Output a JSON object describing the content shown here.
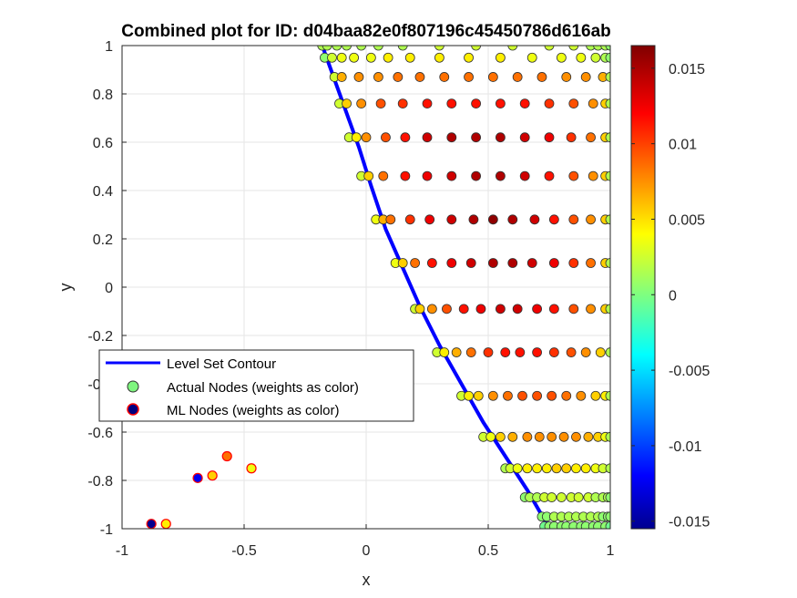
{
  "chart_data": {
    "type": "scatter",
    "title": "Combined plot for ID: d04baa82e0f807196c45450786d616ab",
    "xlabel": "x",
    "ylabel": "y",
    "xlim": [
      -1,
      1
    ],
    "ylim": [
      -1,
      1
    ],
    "grid": true,
    "x_ticks": [
      -1,
      -0.5,
      0,
      0.5,
      1
    ],
    "y_ticks": [
      -1,
      -0.8,
      -0.6,
      -0.4,
      -0.2,
      0,
      0.2,
      0.4,
      0.6,
      0.8,
      1
    ],
    "x_tick_labels": [
      "-1",
      "-0.5",
      "0",
      "0.5",
      "1"
    ],
    "y_tick_labels": [
      "-1",
      "-0.8",
      "-0.6",
      "-0.4",
      "-0.2",
      "0",
      "0.2",
      "0.4",
      "0.6",
      "0.8",
      "1"
    ],
    "colormap": "jet",
    "colorbar": {
      "range": [
        -0.0155,
        0.0165
      ],
      "ticks": [
        -0.015,
        -0.01,
        -0.005,
        0,
        0.005,
        0.01,
        0.015
      ],
      "tick_labels": [
        "-0.015",
        "-0.01",
        "-0.005",
        "0",
        "0.005",
        "0.01",
        "0.015"
      ]
    },
    "legend": {
      "position": "middle-left",
      "entries": [
        "Level Set Contour",
        "Actual Nodes (weights as color)",
        "ML Nodes (weights as color)"
      ]
    },
    "level_set_contour": {
      "name": "Level Set Contour",
      "color": "#0000ff",
      "points": [
        [
          -0.18,
          1.0
        ],
        [
          -0.13,
          0.86
        ],
        [
          -0.08,
          0.72
        ],
        [
          -0.03,
          0.58
        ],
        [
          0.02,
          0.42
        ],
        [
          0.08,
          0.24
        ],
        [
          0.15,
          0.08
        ],
        [
          0.22,
          -0.08
        ],
        [
          0.3,
          -0.24
        ],
        [
          0.39,
          -0.4
        ],
        [
          0.48,
          -0.56
        ],
        [
          0.57,
          -0.7
        ],
        [
          0.66,
          -0.84
        ],
        [
          0.74,
          -0.98
        ]
      ]
    },
    "actual_nodes": {
      "name": "Actual Nodes (weights as color)",
      "rows": [
        {
          "y": 1.0,
          "x": [
            -0.18,
            -0.16,
            -0.12,
            -0.08,
            -0.02,
            0.05,
            0.15,
            0.3,
            0.45,
            0.6,
            0.75,
            0.85,
            0.92,
            0.95,
            0.98,
            1.0
          ],
          "w": [
            0.002,
            0.002,
            0.002,
            0.002,
            0.002,
            0.002,
            0.002,
            0.003,
            0.003,
            0.003,
            0.003,
            0.003,
            0.002,
            0.002,
            0.002,
            0.001
          ]
        },
        {
          "y": 0.95,
          "x": [
            -0.17,
            -0.14,
            -0.1,
            -0.05,
            0.02,
            0.09,
            0.18,
            0.3,
            0.42,
            0.55,
            0.68,
            0.8,
            0.88,
            0.94,
            0.98,
            1.0
          ],
          "w": [
            0.001,
            0.003,
            0.004,
            0.004,
            0.004,
            0.005,
            0.005,
            0.005,
            0.005,
            0.005,
            0.004,
            0.004,
            0.004,
            0.003,
            0.002,
            0.001
          ]
        },
        {
          "y": 0.87,
          "x": [
            -0.13,
            -0.1,
            -0.03,
            0.05,
            0.13,
            0.22,
            0.32,
            0.42,
            0.52,
            0.62,
            0.72,
            0.82,
            0.9,
            0.97,
            1.0
          ],
          "w": [
            0.003,
            0.007,
            0.008,
            0.008,
            0.009,
            0.009,
            0.009,
            0.009,
            0.009,
            0.009,
            0.009,
            0.008,
            0.008,
            0.007,
            0.002
          ]
        },
        {
          "y": 0.76,
          "x": [
            -0.11,
            -0.08,
            -0.02,
            0.06,
            0.15,
            0.25,
            0.35,
            0.45,
            0.55,
            0.65,
            0.75,
            0.85,
            0.93,
            0.98,
            1.0
          ],
          "w": [
            0.003,
            0.006,
            0.008,
            0.01,
            0.011,
            0.012,
            0.012,
            0.012,
            0.012,
            0.012,
            0.011,
            0.01,
            0.008,
            0.006,
            0.002
          ]
        },
        {
          "y": 0.62,
          "x": [
            -0.07,
            -0.04,
            0.0,
            0.08,
            0.16,
            0.25,
            0.35,
            0.45,
            0.55,
            0.65,
            0.75,
            0.84,
            0.92,
            0.98,
            1.0
          ],
          "w": [
            0.003,
            0.005,
            0.008,
            0.01,
            0.012,
            0.014,
            0.015,
            0.015,
            0.015,
            0.014,
            0.013,
            0.011,
            0.009,
            0.006,
            0.002
          ]
        },
        {
          "y": 0.46,
          "x": [
            -0.02,
            0.01,
            0.07,
            0.16,
            0.25,
            0.35,
            0.45,
            0.55,
            0.65,
            0.75,
            0.85,
            0.93,
            0.98,
            1.0
          ],
          "w": [
            0.003,
            0.006,
            0.009,
            0.012,
            0.013,
            0.014,
            0.015,
            0.015,
            0.014,
            0.012,
            0.01,
            0.008,
            0.006,
            0.002
          ]
        },
        {
          "y": 0.28,
          "x": [
            0.04,
            0.07,
            0.1,
            0.18,
            0.26,
            0.35,
            0.44,
            0.52,
            0.6,
            0.69,
            0.77,
            0.85,
            0.92,
            0.98,
            1.0
          ],
          "w": [
            0.004,
            0.007,
            0.009,
            0.011,
            0.013,
            0.014,
            0.015,
            0.016,
            0.015,
            0.014,
            0.012,
            0.01,
            0.008,
            0.006,
            0.002
          ]
        },
        {
          "y": 0.1,
          "x": [
            0.12,
            0.15,
            0.2,
            0.27,
            0.35,
            0.43,
            0.52,
            0.6,
            0.68,
            0.77,
            0.85,
            0.92,
            0.98,
            1.0
          ],
          "w": [
            0.004,
            0.006,
            0.009,
            0.012,
            0.013,
            0.014,
            0.015,
            0.015,
            0.014,
            0.013,
            0.011,
            0.009,
            0.006,
            0.002
          ]
        },
        {
          "y": -0.09,
          "x": [
            0.2,
            0.22,
            0.27,
            0.33,
            0.4,
            0.47,
            0.55,
            0.62,
            0.7,
            0.77,
            0.85,
            0.92,
            0.98,
            1.0
          ],
          "w": [
            0.003,
            0.006,
            0.008,
            0.01,
            0.012,
            0.013,
            0.014,
            0.014,
            0.013,
            0.012,
            0.01,
            0.008,
            0.006,
            0.002
          ]
        },
        {
          "y": -0.27,
          "x": [
            0.29,
            0.32,
            0.37,
            0.43,
            0.5,
            0.57,
            0.63,
            0.7,
            0.77,
            0.84,
            0.9,
            0.96,
            1.0
          ],
          "w": [
            0.003,
            0.005,
            0.007,
            0.009,
            0.011,
            0.012,
            0.012,
            0.012,
            0.011,
            0.01,
            0.008,
            0.006,
            0.002
          ]
        },
        {
          "y": -0.45,
          "x": [
            0.39,
            0.42,
            0.46,
            0.52,
            0.58,
            0.64,
            0.7,
            0.76,
            0.82,
            0.88,
            0.94,
            0.98,
            1.0
          ],
          "w": [
            0.003,
            0.005,
            0.006,
            0.008,
            0.009,
            0.01,
            0.01,
            0.01,
            0.009,
            0.008,
            0.006,
            0.005,
            0.002
          ]
        },
        {
          "y": -0.62,
          "x": [
            0.48,
            0.51,
            0.55,
            0.6,
            0.66,
            0.71,
            0.76,
            0.81,
            0.86,
            0.91,
            0.95,
            0.98,
            1.0
          ],
          "w": [
            0.003,
            0.004,
            0.006,
            0.007,
            0.008,
            0.008,
            0.008,
            0.008,
            0.008,
            0.007,
            0.006,
            0.004,
            0.002
          ]
        },
        {
          "y": -0.75,
          "x": [
            0.57,
            0.59,
            0.62,
            0.66,
            0.7,
            0.74,
            0.78,
            0.82,
            0.86,
            0.9,
            0.94,
            0.97,
            1.0
          ],
          "w": [
            0.002,
            0.003,
            0.004,
            0.005,
            0.005,
            0.005,
            0.006,
            0.006,
            0.005,
            0.005,
            0.004,
            0.003,
            0.002
          ]
        },
        {
          "y": -0.87,
          "x": [
            0.65,
            0.67,
            0.7,
            0.73,
            0.76,
            0.8,
            0.84,
            0.87,
            0.91,
            0.94,
            0.97,
            0.99,
            1.0
          ],
          "w": [
            0.001,
            0.002,
            0.002,
            0.003,
            0.003,
            0.003,
            0.003,
            0.003,
            0.003,
            0.002,
            0.002,
            0.002,
            0.001
          ]
        },
        {
          "y": -0.95,
          "x": [
            0.72,
            0.74,
            0.77,
            0.8,
            0.83,
            0.86,
            0.89,
            0.92,
            0.95,
            0.97,
            0.99,
            1.0
          ],
          "w": [
            0.001,
            0.001,
            0.002,
            0.002,
            0.002,
            0.002,
            0.002,
            0.002,
            0.002,
            0.001,
            0.001,
            0.001
          ]
        },
        {
          "y": -0.99,
          "x": [
            0.73,
            0.75,
            0.77,
            0.8,
            0.82,
            0.85,
            0.88,
            0.9,
            0.93,
            0.95,
            0.98,
            1.0
          ],
          "w": [
            0.0,
            0.001,
            0.001,
            0.001,
            0.001,
            0.001,
            0.001,
            0.001,
            0.001,
            0.001,
            0.001,
            0.0
          ]
        }
      ]
    },
    "ml_nodes": {
      "name": "ML Nodes (weights as color)",
      "points": [
        {
          "x": -0.88,
          "y": -0.98,
          "w": -0.015
        },
        {
          "x": -0.82,
          "y": -0.98,
          "w": 0.005
        },
        {
          "x": -0.69,
          "y": -0.79,
          "w": -0.012
        },
        {
          "x": -0.63,
          "y": -0.78,
          "w": 0.006
        },
        {
          "x": -0.57,
          "y": -0.7,
          "w": 0.009
        },
        {
          "x": -0.47,
          "y": -0.75,
          "w": 0.004
        }
      ]
    }
  }
}
